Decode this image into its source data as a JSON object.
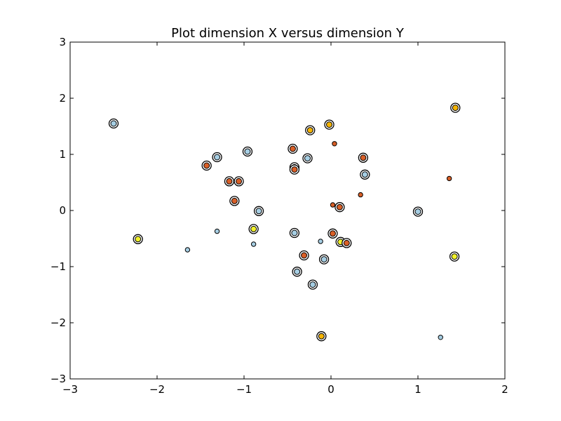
{
  "chart_data": {
    "type": "scatter",
    "title": "Plot dimension X versus dimension Y",
    "xlabel": "",
    "ylabel": "",
    "xlim": [
      -3,
      2
    ],
    "ylim": [
      -3,
      3
    ],
    "xticks": [
      -3,
      -2,
      -1,
      0,
      1,
      2
    ],
    "yticks": [
      -3,
      -2,
      -1,
      0,
      1,
      2,
      3
    ],
    "xtick_labels": [
      "−3",
      "−2",
      "−1",
      "0",
      "1",
      "2"
    ],
    "ytick_labels": [
      "−3",
      "−2",
      "−1",
      "0",
      "1",
      "2",
      "3"
    ],
    "grid": false,
    "legend": "none",
    "colors": {
      "light_blue": "#a6cee3",
      "red_orange": "#d95f27",
      "gold": "#f5b400",
      "yellow": "#f2f22a"
    },
    "points": [
      {
        "x": -2.5,
        "y": 1.55,
        "color": "light_blue",
        "ring": true
      },
      {
        "x": -2.22,
        "y": -0.51,
        "color": "yellow",
        "ring": true
      },
      {
        "x": -1.65,
        "y": -0.7,
        "color": "light_blue",
        "ring": false
      },
      {
        "x": -1.43,
        "y": 0.8,
        "color": "red_orange",
        "ring": true
      },
      {
        "x": -1.31,
        "y": 0.95,
        "color": "light_blue",
        "ring": true
      },
      {
        "x": -1.31,
        "y": -0.37,
        "color": "light_blue",
        "ring": false
      },
      {
        "x": -1.17,
        "y": 0.52,
        "color": "red_orange",
        "ring": true
      },
      {
        "x": -1.11,
        "y": 0.17,
        "color": "red_orange",
        "ring": true
      },
      {
        "x": -1.06,
        "y": 0.52,
        "color": "red_orange",
        "ring": true
      },
      {
        "x": -0.96,
        "y": 1.05,
        "color": "light_blue",
        "ring": true
      },
      {
        "x": -0.89,
        "y": -0.33,
        "color": "yellow",
        "ring": true
      },
      {
        "x": -0.89,
        "y": -0.6,
        "color": "light_blue",
        "ring": false
      },
      {
        "x": -0.83,
        "y": -0.01,
        "color": "light_blue",
        "ring": true
      },
      {
        "x": -0.44,
        "y": 1.1,
        "color": "red_orange",
        "ring": true
      },
      {
        "x": -0.42,
        "y": 0.77,
        "color": "red_orange",
        "ring": true
      },
      {
        "x": -0.42,
        "y": 0.73,
        "color": "red_orange",
        "ring": true
      },
      {
        "x": -0.42,
        "y": -0.4,
        "color": "light_blue",
        "ring": true
      },
      {
        "x": -0.39,
        "y": -1.09,
        "color": "light_blue",
        "ring": true
      },
      {
        "x": -0.31,
        "y": -0.8,
        "color": "red_orange",
        "ring": true
      },
      {
        "x": -0.27,
        "y": 0.93,
        "color": "light_blue",
        "ring": true
      },
      {
        "x": -0.24,
        "y": 1.43,
        "color": "gold",
        "ring": true
      },
      {
        "x": -0.21,
        "y": -1.32,
        "color": "light_blue",
        "ring": true
      },
      {
        "x": -0.12,
        "y": -0.55,
        "color": "light_blue",
        "ring": false
      },
      {
        "x": -0.11,
        "y": -2.24,
        "color": "gold",
        "ring": true
      },
      {
        "x": -0.08,
        "y": -0.87,
        "color": "light_blue",
        "ring": true
      },
      {
        "x": -0.02,
        "y": 1.53,
        "color": "gold",
        "ring": true
      },
      {
        "x": 0.02,
        "y": -0.41,
        "color": "red_orange",
        "ring": true
      },
      {
        "x": 0.02,
        "y": 0.1,
        "color": "red_orange",
        "ring": false
      },
      {
        "x": 0.04,
        "y": 1.19,
        "color": "red_orange",
        "ring": false
      },
      {
        "x": 0.1,
        "y": 0.06,
        "color": "red_orange",
        "ring": true
      },
      {
        "x": 0.11,
        "y": -0.56,
        "color": "yellow",
        "ring": true
      },
      {
        "x": 0.18,
        "y": -0.58,
        "color": "red_orange",
        "ring": true
      },
      {
        "x": 0.34,
        "y": 0.28,
        "color": "red_orange",
        "ring": false
      },
      {
        "x": 0.37,
        "y": 0.94,
        "color": "red_orange",
        "ring": true
      },
      {
        "x": 0.39,
        "y": 0.64,
        "color": "light_blue",
        "ring": true
      },
      {
        "x": 1.0,
        "y": -0.02,
        "color": "light_blue",
        "ring": true
      },
      {
        "x": 1.26,
        "y": -2.26,
        "color": "light_blue",
        "ring": false
      },
      {
        "x": 1.36,
        "y": 0.57,
        "color": "red_orange",
        "ring": false
      },
      {
        "x": 1.42,
        "y": -0.82,
        "color": "yellow",
        "ring": true
      },
      {
        "x": 1.43,
        "y": 1.83,
        "color": "gold",
        "ring": true
      }
    ]
  }
}
